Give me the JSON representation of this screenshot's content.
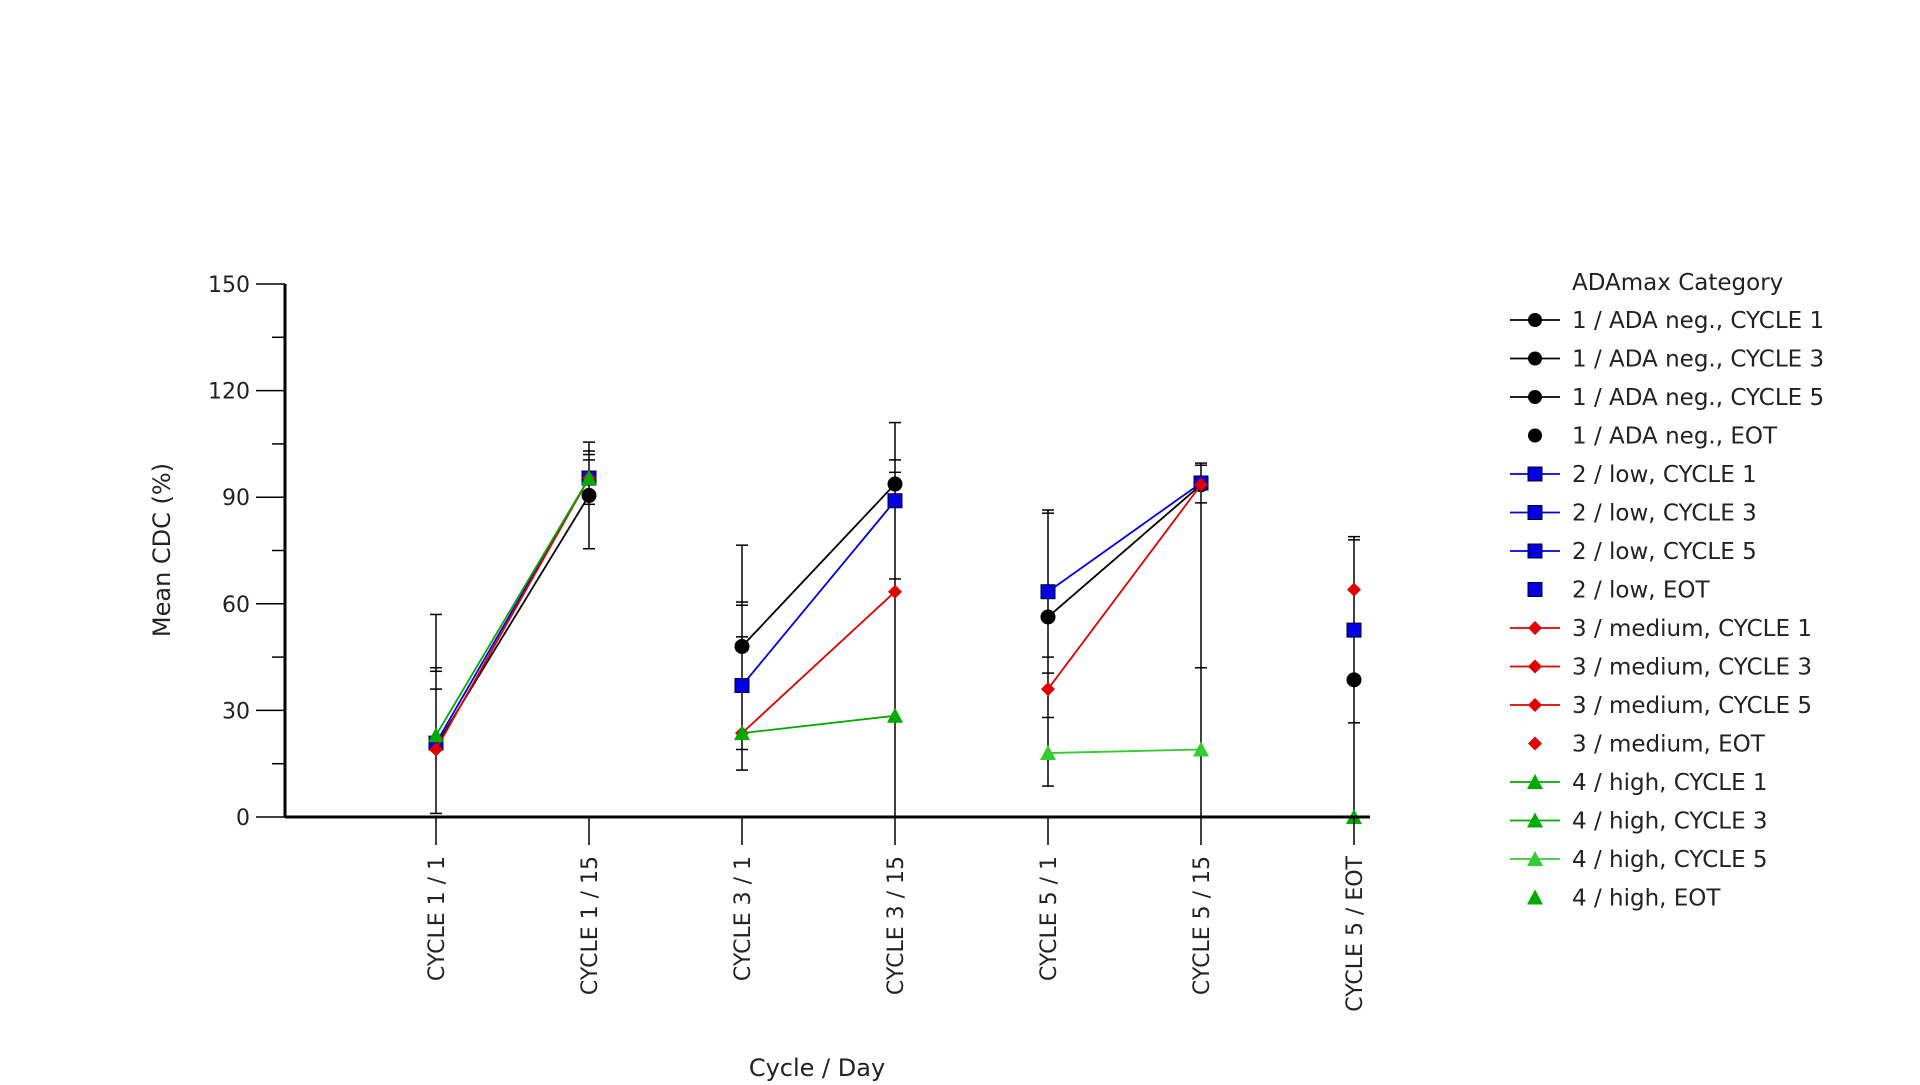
{
  "chart_data": {
    "type": "line",
    "title": "",
    "xlabel": "Cycle / Day",
    "ylabel": "Mean CDC (%)",
    "ylim": [
      0,
      150
    ],
    "yticks": [
      0,
      30,
      60,
      90,
      120,
      150
    ],
    "yminor_step": 15,
    "grid": false,
    "legend_position": "right",
    "legend_title": "ADAmax Category",
    "categories": [
      "CYCLE 1 / 1",
      "CYCLE 1 / 15",
      "CYCLE 3 / 1",
      "CYCLE 3 / 15",
      "CYCLE 5 / 1",
      "CYCLE 5 / 15",
      "CYCLE 5 / EOT"
    ],
    "groups": [
      {
        "id": "ada-neg",
        "color": "#000000",
        "marker": "circle"
      },
      {
        "id": "low",
        "color": "#0000e0",
        "marker": "square"
      },
      {
        "id": "medium",
        "color": "#e00000",
        "marker": "diamond"
      },
      {
        "id": "high",
        "color": "#00b000",
        "marker": "triangle"
      }
    ],
    "series": [
      {
        "name": "1 / ADA neg., CYCLE 1",
        "group": "ada-neg",
        "line": true,
        "color": "#000000",
        "marker": "circle",
        "points": [
          {
            "x": 0,
            "y": 20
          },
          {
            "x": 1,
            "y": 90.5
          }
        ],
        "error_upper": [
          41,
          105.5
        ]
      },
      {
        "name": "1 / ADA neg., CYCLE 3",
        "group": "ada-neg",
        "line": true,
        "color": "#000000",
        "marker": "circle",
        "points": [
          {
            "x": 2,
            "y": 48
          },
          {
            "x": 3,
            "y": 93.7
          }
        ],
        "error_upper": [
          60.5,
          111
        ]
      },
      {
        "name": "1 / ADA neg., CYCLE 5",
        "group": "ada-neg",
        "line": true,
        "color": "#000000",
        "marker": "circle",
        "points": [
          {
            "x": 4,
            "y": 56.3
          },
          {
            "x": 5,
            "y": 93.5
          }
        ],
        "error_upper": [
          86.4,
          99.6
        ]
      },
      {
        "name": "1 / ADA neg., EOT",
        "group": "ada-neg",
        "line": false,
        "color": "#000000",
        "marker": "circle",
        "points": [
          {
            "x": 6,
            "y": 38.6
          }
        ],
        "error_upper": [
          78.9
        ]
      },
      {
        "name": "2 / low, CYCLE 1",
        "group": "low",
        "line": true,
        "color": "#0000e0",
        "marker": "square",
        "points": [
          {
            "x": 0,
            "y": 20.8
          },
          {
            "x": 1,
            "y": 95.4
          }
        ],
        "error_upper": [
          42,
          103
        ]
      },
      {
        "name": "2 / low, CYCLE 3",
        "group": "low",
        "line": true,
        "color": "#0000e0",
        "marker": "square",
        "points": [
          {
            "x": 2,
            "y": 37
          },
          {
            "x": 3,
            "y": 89
          }
        ],
        "error_upper": [
          59.6,
          100.5
        ]
      },
      {
        "name": "2 / low, CYCLE 5",
        "group": "low",
        "line": true,
        "color": "#0000e0",
        "marker": "square",
        "points": [
          {
            "x": 4,
            "y": 63.4
          },
          {
            "x": 5,
            "y": 94
          }
        ],
        "error_upper": [
          85.5,
          99
        ]
      },
      {
        "name": "2 / low, EOT",
        "group": "low",
        "line": false,
        "color": "#0000e0",
        "marker": "square",
        "points": [
          {
            "x": 6,
            "y": 52.6
          }
        ],
        "error_upper": [
          78
        ]
      },
      {
        "name": "3 / medium, CYCLE 1",
        "group": "medium",
        "line": true,
        "color": "#e00000",
        "marker": "diamond",
        "points": [
          {
            "x": 0,
            "y": 19
          },
          {
            "x": 1,
            "y": 95.4
          }
        ],
        "error_upper": [
          36,
          102
        ]
      },
      {
        "name": "3 / medium, CYCLE 3",
        "group": "medium",
        "line": true,
        "color": "#e00000",
        "marker": "diamond",
        "points": [
          {
            "x": 2,
            "y": 23.6
          },
          {
            "x": 3,
            "y": 63.4
          }
        ],
        "error_upper": [
          50.7,
          97
        ]
      },
      {
        "name": "3 / medium, CYCLE 5",
        "group": "medium",
        "line": true,
        "color": "#e00000",
        "marker": "diamond",
        "points": [
          {
            "x": 4,
            "y": 36
          },
          {
            "x": 5,
            "y": 93.5
          }
        ],
        "error_upper": [
          45,
          88.4
        ]
      },
      {
        "name": "3 / medium, EOT",
        "group": "medium",
        "line": false,
        "color": "#e00000",
        "marker": "diamond",
        "points": [
          {
            "x": 6,
            "y": 64
          }
        ],
        "error_upper": [
          78.9
        ]
      },
      {
        "name": "4 / high, CYCLE 1",
        "group": "high",
        "line": true,
        "color": "#00aa00",
        "marker": "triangle",
        "points": [
          {
            "x": 0,
            "y": 23
          },
          {
            "x": 1,
            "y": 95.4
          }
        ],
        "error_upper": [
          57,
          100.5
        ]
      },
      {
        "name": "4 / high, CYCLE 3",
        "group": "high",
        "line": true,
        "color": "#00aa00",
        "marker": "triangle",
        "points": [
          {
            "x": 2,
            "y": 23.6
          },
          {
            "x": 3,
            "y": 28.5
          }
        ],
        "error_upper": [
          76.5,
          67
        ]
      },
      {
        "name": "4 / high, CYCLE 5",
        "group": "high",
        "line": true,
        "color": "#33cc33",
        "marker": "triangle",
        "points": [
          {
            "x": 4,
            "y": 18
          },
          {
            "x": 5,
            "y": 19
          }
        ],
        "error_upper": [
          40.5,
          42
        ]
      },
      {
        "name": "4 / high, EOT",
        "group": "high",
        "line": false,
        "color": "#00aa00",
        "marker": "triangle",
        "points": [
          {
            "x": 6,
            "y": 0
          }
        ],
        "error_upper": [
          26.5
        ]
      }
    ],
    "error_bars": [
      {
        "x": 0,
        "low": 1,
        "high": 57,
        "inner_caps": [
          42,
          41,
          36
        ]
      },
      {
        "x": 1,
        "low": 75.5,
        "high": 105.5,
        "inner_caps": [
          103,
          102,
          100.5,
          88
        ]
      },
      {
        "x": 2,
        "low": 13.2,
        "high": 76.5,
        "inner_caps": [
          60.5,
          59.6,
          50.7,
          19
        ]
      },
      {
        "x": 3,
        "low": 0,
        "high": 111,
        "inner_caps": [
          100.5,
          97,
          67
        ]
      },
      {
        "x": 4,
        "low": 8.7,
        "high": 86.4,
        "inner_caps": [
          85.5,
          45,
          40.5,
          28
        ]
      },
      {
        "x": 5,
        "low": 0,
        "high": 99.6,
        "inner_caps": [
          99,
          88.4,
          42
        ]
      },
      {
        "x": 6,
        "low": 0,
        "high": 78.9,
        "inner_caps": [
          78,
          26.5
        ]
      }
    ]
  },
  "axes": {
    "y_title": "Mean CDC (%)",
    "x_title": "Cycle / Day"
  },
  "legend": {
    "title": "ADAmax Category"
  }
}
